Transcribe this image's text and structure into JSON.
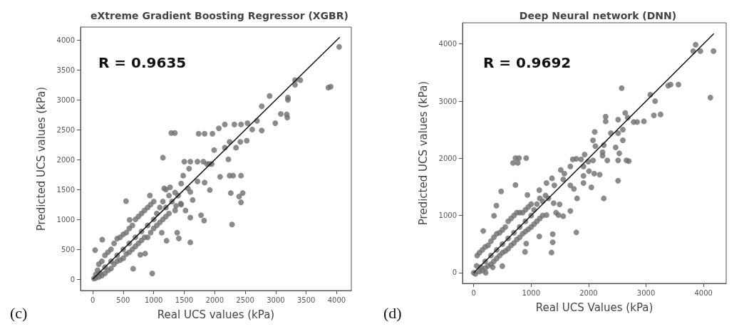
{
  "chart_data": [
    {
      "type": "scatter",
      "title": "eXtreme Gradient Boosting Regressor (XGBR)",
      "xlabel": "Real UCS values (kPa)",
      "ylabel": "Predicted UCS values (kPa)",
      "annotations": [
        "R = 0.9635",
        "(c)"
      ],
      "xlim": [
        -200,
        4240
      ],
      "ylim": [
        -190,
        4220
      ],
      "xticks": [
        0,
        500,
        1000,
        1500,
        2000,
        2500,
        3000,
        3500,
        4000
      ],
      "yticks": [
        0,
        500,
        1000,
        1500,
        2000,
        2500,
        3000,
        3500,
        4000
      ],
      "grid": false,
      "marker": "circle",
      "series": [
        {
          "color": "#6e6e6e",
          "x": [
            20,
            50,
            50,
            80,
            100,
            100,
            120,
            150,
            150,
            200,
            200,
            200,
            250,
            250,
            300,
            300,
            300,
            350,
            350,
            400,
            400,
            400,
            450,
            450,
            500,
            500,
            500,
            550,
            550,
            600,
            600,
            600,
            650,
            650,
            700,
            700,
            700,
            750,
            750,
            800,
            800,
            800,
            850,
            850,
            900,
            900,
            900,
            950,
            950,
            1000,
            1000,
            1000,
            1050,
            1050,
            1100,
            1100,
            1150,
            1150,
            1200,
            1200,
            1200,
            1250,
            1250,
            1300,
            1350,
            1350,
            1400,
            1450,
            1450,
            4040,
            3863,
            3902,
            3317,
            3403,
            3317,
            3200,
            3200,
            2900,
            2771,
            3083,
            3181,
            3190,
            2993,
            2771,
            2693,
            2615,
            2525,
            2420,
            2349,
            2244,
            2322,
            2431,
            2537,
            2166,
            2068,
            1963,
            1834,
            1737,
            1288,
            1346,
            1151,
            2166,
            1990,
            2224,
            2244,
            2088,
            2302,
            2431,
            2263,
            2400,
            2459,
            2431,
            2283,
            1920,
            1600,
            1776,
            1826,
            1385,
            1412,
            976,
            546,
            937,
            1502,
            1600,
            1717,
            1814,
            1873,
            1483,
            1561,
            1600,
            1171,
            1268,
            1639,
            1717,
            1834,
            1580,
            1912,
            1951,
            1366,
            1444,
            1600,
            1522,
            605,
            156,
            39,
            663,
            780,
            859,
            1132,
            1210
          ],
          "values": [
            10,
            80,
            20,
            150,
            40,
            250,
            100,
            300,
            60,
            200,
            400,
            100,
            450,
            150,
            300,
            500,
            180,
            600,
            250,
            400,
            680,
            300,
            700,
            320,
            500,
            750,
            350,
            780,
            420,
            600,
            850,
            450,
            900,
            500,
            700,
            1000,
            550,
            1050,
            600,
            800,
            1100,
            650,
            1150,
            700,
            900,
            1200,
            700,
            1250,
            780,
            1000,
            1300,
            850,
            1100,
            900,
            1200,
            950,
            1300,
            1000,
            1200,
            1500,
            1050,
            1400,
            1100,
            1300,
            1450,
            1150,
            1400,
            1600,
            1250,
            3888,
            3206,
            3222,
            3331,
            3331,
            3253,
            3039,
            3000,
            3066,
            2894,
            2766,
            2758,
            2707,
            2610,
            2489,
            2649,
            2505,
            2318,
            2298,
            2201,
            2298,
            2591,
            2591,
            2610,
            2591,
            2524,
            2435,
            2435,
            2435,
            2446,
            2446,
            2034,
            2201,
            2162,
            2006,
            1733,
            1714,
            1733,
            1733,
            1441,
            1383,
            1441,
            1286,
            915,
            1492,
            616,
            1071,
            982,
            779,
            682,
            97,
            1305,
            1402,
            1967,
            1967,
            1967,
            1967,
            1928,
            1733,
            1519,
            1461,
            1519,
            1539,
            1325,
            1636,
            1617,
            1850,
            1928,
            1928,
            1227,
            1266,
            1032,
            1149,
            993,
            662,
            487,
            175,
            409,
            428,
            779,
            643
          ]
        },
        {
          "type": "line",
          "color": "#111111",
          "x": [
            0,
            4050
          ],
          "values": [
            0,
            4050
          ],
          "marker": "none"
        }
      ]
    },
    {
      "type": "scatter",
      "title": "Deep Neural network (DNN)",
      "xlabel": "Real UCS Values (kPa)",
      "ylabel": "Predicted UCS values (kPa)",
      "annotations": [
        "R = 0.9692",
        "(d)"
      ],
      "xlim": [
        -195,
        4395
      ],
      "ylim": [
        -187,
        4370
      ],
      "xticks": [
        0,
        1000,
        2000,
        3000,
        4000
      ],
      "yticks": [
        0,
        1000,
        2000,
        3000,
        4000
      ],
      "grid": false,
      "marker": "circle",
      "series": [
        {
          "color": "#6e6e6e",
          "x": [
            0,
            30,
            50,
            60,
            100,
            100,
            120,
            150,
            150,
            200,
            200,
            200,
            250,
            250,
            300,
            300,
            300,
            350,
            350,
            400,
            400,
            400,
            450,
            450,
            500,
            500,
            500,
            550,
            550,
            600,
            600,
            600,
            650,
            650,
            700,
            700,
            700,
            750,
            750,
            800,
            800,
            800,
            850,
            850,
            900,
            900,
            900,
            950,
            950,
            1000,
            1000,
            1000,
            1050,
            1050,
            1100,
            1100,
            1150,
            1150,
            1200,
            1200,
            1250,
            1300,
            4174,
            4120,
            3946,
            3821,
            3863,
            3564,
            3385,
            3427,
            3074,
            3157,
            3136,
            3252,
            2962,
            2783,
            2846,
            2575,
            2638,
            2680,
            2297,
            2297,
            2513,
            2596,
            2388,
            2513,
            2596,
            2106,
            2077,
            2118,
            2264,
            2243,
            2471,
            2534,
            2658,
            2700,
            2513,
            2326,
            2243,
            2077,
            1994,
            2513,
            2264,
            2193,
            2098,
            2048,
            1931,
            1869,
            1786,
            1724,
            1682,
            1786,
            1799,
            1744,
            1682,
            1911,
            1911,
            2006,
            1911,
            1516,
            1578,
            1362,
            1404,
            1558,
            1682,
            1558,
            1475,
            1433,
            1391,
            1495,
            1375,
            1375,
            1354,
            1267,
            1142,
            935,
            727,
            789,
            685,
            768,
            914,
            727,
            478,
            395,
            353,
            166,
            914,
            893,
            208,
            332,
            498,
            1267,
            1142
          ],
          "values": [
            0,
            -20,
            120,
            300,
            20,
            350,
            100,
            400,
            40,
            200,
            450,
            80,
            480,
            120,
            300,
            550,
            150,
            620,
            200,
            400,
            680,
            250,
            700,
            300,
            500,
            750,
            350,
            800,
            380,
            600,
            900,
            420,
            950,
            480,
            700,
            1000,
            520,
            1050,
            580,
            800,
            1050,
            620,
            1050,
            680,
            900,
            1100,
            720,
            1150,
            760,
            1000,
            1200,
            800,
            1100,
            850,
            1200,
            900,
            1300,
            950,
            1250,
            1000,
            1350,
            1300,
            3876,
            3062,
            3876,
            3876,
            3988,
            3290,
            3270,
            3290,
            3112,
            3000,
            2751,
            2768,
            2647,
            2635,
            2635,
            3228,
            2793,
            2710,
            2730,
            2647,
            2676,
            2502,
            2440,
            2440,
            2315,
            2461,
            2315,
            2212,
            2232,
            2108,
            2191,
            2087,
            1963,
            1950,
            1963,
            1963,
            2046,
            1963,
            1942,
            1610,
            1299,
            1714,
            1734,
            1494,
            2066,
            1983,
            1992,
            1983,
            1859,
            705,
            1299,
            1465,
            1527,
            1568,
            1693,
            1776,
            1859,
            1797,
            1734,
            1651,
            1527,
            1631,
            1079,
            988,
            1008,
            1050,
            1216,
            1195,
            676,
            531,
            353,
            1568,
            1444,
            1361,
            2004,
            2004,
            1921,
            1921,
            2004,
            1535,
            1423,
            1174,
            996,
            730,
            510,
            365,
            0,
            95,
            116,
            1008,
            635
          ]
        },
        {
          "type": "line",
          "color": "#111111",
          "x": [
            0,
            4180
          ],
          "values": [
            0,
            4180
          ],
          "marker": "none"
        }
      ]
    }
  ]
}
